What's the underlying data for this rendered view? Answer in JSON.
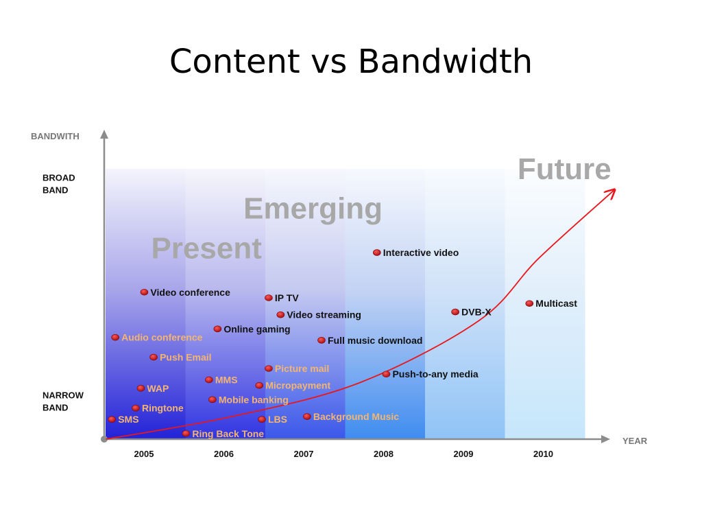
{
  "slide": {
    "title": "Content vs Bandwidth"
  },
  "colors": {
    "dot": "#c0161b",
    "label_dark": "#111111",
    "label_light": "#f5b56e",
    "axis": "#8c8c8c",
    "era_text": "#a8a8a8",
    "trend": "#e8171d"
  },
  "chart_data": {
    "type": "scatter",
    "title": "",
    "xlabel": "YEAR",
    "ylabel": "BANDWITH",
    "x_ticks": [
      "2005",
      "2006",
      "2007",
      "2008",
      "2009",
      "2010"
    ],
    "y_ticks": [
      {
        "label": [
          "BROAD",
          "BAND"
        ],
        "level": 0.88
      },
      {
        "label": [
          "NARROW",
          "BAND"
        ],
        "level": 0.11
      }
    ],
    "xlim": [
      2004.5,
      2011
    ],
    "ylim": [
      0,
      1
    ],
    "grid": false,
    "eras": [
      {
        "name": "Present",
        "x": 2005.7,
        "level": 0.64
      },
      {
        "name": "Emerging",
        "x": 2006.95,
        "level": 0.78
      },
      {
        "name": "Future",
        "x": 2009.9,
        "level": 0.92
      }
    ],
    "trend_curve": [
      [
        2004.52,
        0.0
      ],
      [
        2006.0,
        0.08
      ],
      [
        2007.5,
        0.2
      ],
      [
        2008.9,
        0.42
      ],
      [
        2009.6,
        0.64
      ],
      [
        2010.48,
        0.88
      ]
    ],
    "points": [
      {
        "label": "Interactive video",
        "x": 2007.7,
        "y": 0.66,
        "tone": "dark"
      },
      {
        "label": "Video conference",
        "x": 2004.97,
        "y": 0.52,
        "tone": "dark"
      },
      {
        "label": "IP TV",
        "x": 2006.43,
        "y": 0.5,
        "tone": "dark"
      },
      {
        "label": "Video streaming",
        "x": 2006.57,
        "y": 0.44,
        "tone": "dark"
      },
      {
        "label": "DVB-X",
        "x": 2008.62,
        "y": 0.45,
        "tone": "dark"
      },
      {
        "label": "Multicast",
        "x": 2009.49,
        "y": 0.48,
        "tone": "dark"
      },
      {
        "label": "Online gaming",
        "x": 2005.83,
        "y": 0.39,
        "tone": "dark"
      },
      {
        "label": "Audio conference",
        "x": 2004.63,
        "y": 0.36,
        "tone": "light"
      },
      {
        "label": "Full music download",
        "x": 2007.05,
        "y": 0.35,
        "tone": "dark"
      },
      {
        "label": "Push Email",
        "x": 2005.08,
        "y": 0.29,
        "tone": "light"
      },
      {
        "label": "Picture mail",
        "x": 2006.43,
        "y": 0.25,
        "tone": "light"
      },
      {
        "label": "Push-to-any media",
        "x": 2007.81,
        "y": 0.23,
        "tone": "dark"
      },
      {
        "label": "MMS",
        "x": 2005.73,
        "y": 0.21,
        "tone": "light"
      },
      {
        "label": "Micropayment",
        "x": 2006.32,
        "y": 0.19,
        "tone": "light"
      },
      {
        "label": "WAP",
        "x": 2004.93,
        "y": 0.18,
        "tone": "light"
      },
      {
        "label": "Mobile banking",
        "x": 2005.77,
        "y": 0.14,
        "tone": "light"
      },
      {
        "label": "Ringtone",
        "x": 2004.87,
        "y": 0.11,
        "tone": "light"
      },
      {
        "label": "Background Music",
        "x": 2006.88,
        "y": 0.08,
        "tone": "light"
      },
      {
        "label": "SMS",
        "x": 2004.59,
        "y": 0.07,
        "tone": "light"
      },
      {
        "label": "LBS",
        "x": 2006.35,
        "y": 0.07,
        "tone": "light"
      },
      {
        "label": "Ring Back Tone",
        "x": 2005.46,
        "y": 0.02,
        "tone": "light"
      }
    ]
  }
}
